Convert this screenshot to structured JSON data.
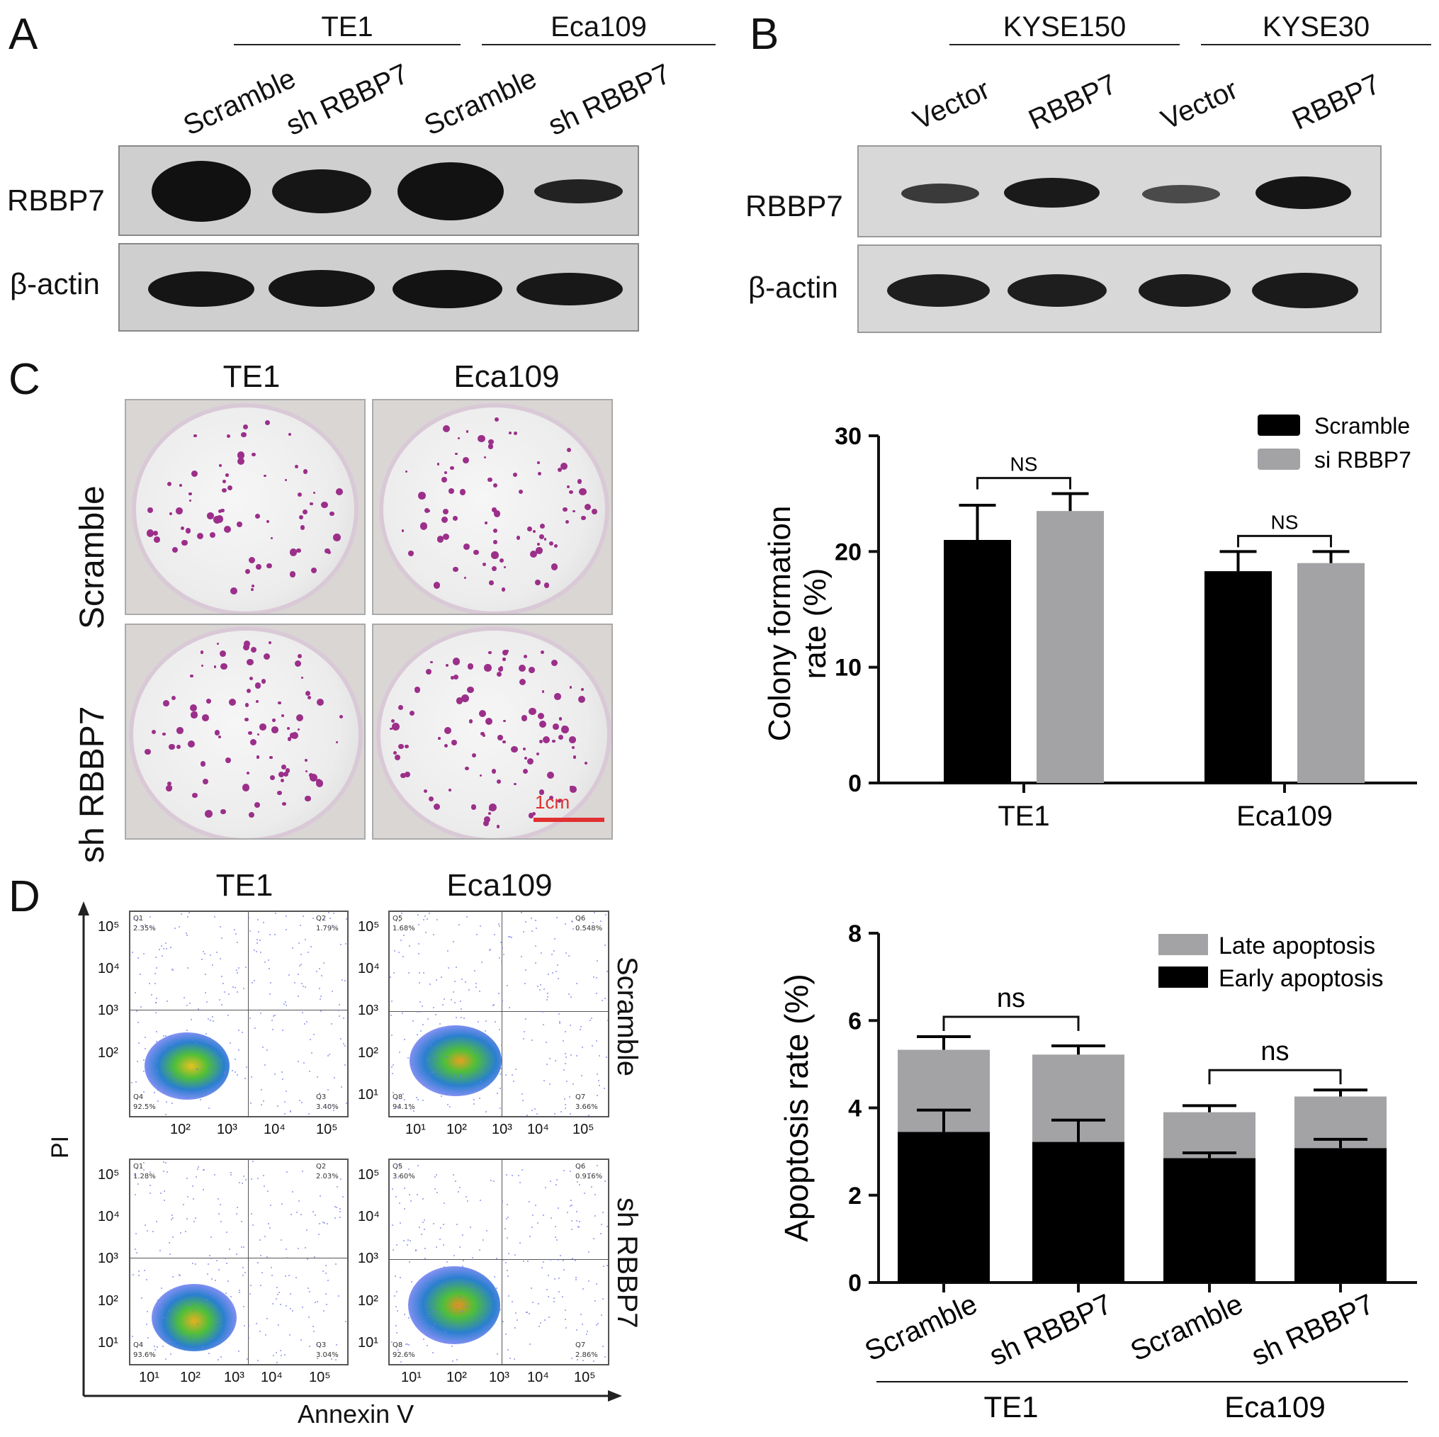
{
  "panels": {
    "A": "A",
    "B": "B",
    "C": "C",
    "D": "D"
  },
  "panelA": {
    "groups": [
      "TE1",
      "Eca109"
    ],
    "lanes": [
      "Scramble",
      "sh RBBP7",
      "Scramble",
      "sh RBBP7"
    ],
    "rows": [
      "RBBP7",
      "β-actin"
    ]
  },
  "panelB": {
    "groups": [
      "KYSE150",
      "KYSE30"
    ],
    "lanes": [
      "Vector",
      "RBBP7",
      "Vector",
      "RBBP7"
    ],
    "rows": [
      "RBBP7",
      "β-actin"
    ]
  },
  "panelC": {
    "cols": [
      "TE1",
      "Eca109"
    ],
    "rows": [
      "Scramble",
      "sh RBBP7"
    ],
    "scalebar": "1cm"
  },
  "panelD": {
    "cols": [
      "TE1",
      "Eca109"
    ],
    "rows": [
      "Scramble",
      "sh RBBP7"
    ],
    "xaxis": "Annexin V",
    "yaxis": "PI",
    "plots": [
      {
        "q": [
          "Q1",
          "Q2",
          "Q3",
          "Q4"
        ],
        "v": [
          "2.35%",
          "1.79%",
          "3.40%",
          "92.5%"
        ]
      },
      {
        "q": [
          "Q5",
          "Q6",
          "Q7",
          "Q8"
        ],
        "v": [
          "1.68%",
          "0.548%",
          "3.66%",
          "94.1%"
        ]
      },
      {
        "q": [
          "Q1",
          "Q2",
          "Q3",
          "Q4"
        ],
        "v": [
          "1.28%",
          "2.03%",
          "3.04%",
          "93.6%"
        ]
      },
      {
        "q": [
          "Q5",
          "Q6",
          "Q7",
          "Q8"
        ],
        "v": [
          "3.60%",
          "0.916%",
          "2.86%",
          "92.6%"
        ]
      }
    ],
    "xticks_left": [
      "10²",
      "10³",
      "10⁴",
      "10⁵"
    ],
    "xticks_right": [
      "10¹",
      "10²",
      "10³",
      "10⁴",
      "10⁵"
    ],
    "yticks": [
      "10⁵",
      "10⁴",
      "10³",
      "10²",
      "10¹"
    ]
  },
  "chart_data": [
    {
      "type": "bar",
      "ylabel": "Colony formation rate (%)",
      "categories": [
        "TE1",
        "Eca109"
      ],
      "ylim": [
        0,
        30
      ],
      "yticks": [
        "0",
        "10",
        "20",
        "30"
      ],
      "series": [
        {
          "name": "Scramble",
          "color": "#000000",
          "values": [
            21.0,
            18.3
          ],
          "errors": [
            3.0,
            1.7
          ]
        },
        {
          "name": "si RBBP7",
          "color": "#a3a3a6",
          "values": [
            23.5,
            19.0
          ],
          "errors": [
            1.5,
            1.0
          ]
        }
      ],
      "annotations": [
        "NS",
        "NS"
      ],
      "legend": "top-right"
    },
    {
      "type": "bar",
      "stacked": true,
      "ylabel": "Apoptosis rate (%)",
      "categories": [
        "Scramble",
        "sh RBBP7",
        "Scramble",
        "sh RBBP7"
      ],
      "groups": [
        "TE1",
        "Eca109"
      ],
      "ylim": [
        0,
        8
      ],
      "yticks": [
        "0",
        "2",
        "4",
        "6",
        "8"
      ],
      "series": [
        {
          "name": "Early apoptosis",
          "color": "#000000",
          "values": [
            3.45,
            3.22,
            2.85,
            3.08
          ],
          "errors": [
            0.5,
            0.5,
            0.12,
            0.2
          ]
        },
        {
          "name": "Late apoptosis",
          "color": "#a3a3a6",
          "values": [
            1.88,
            2.0,
            1.05,
            1.18
          ],
          "errors": [
            0.3,
            0.2,
            0.15,
            0.15
          ]
        }
      ],
      "annotations": [
        "ns",
        "ns"
      ],
      "legend": "top-right"
    }
  ]
}
